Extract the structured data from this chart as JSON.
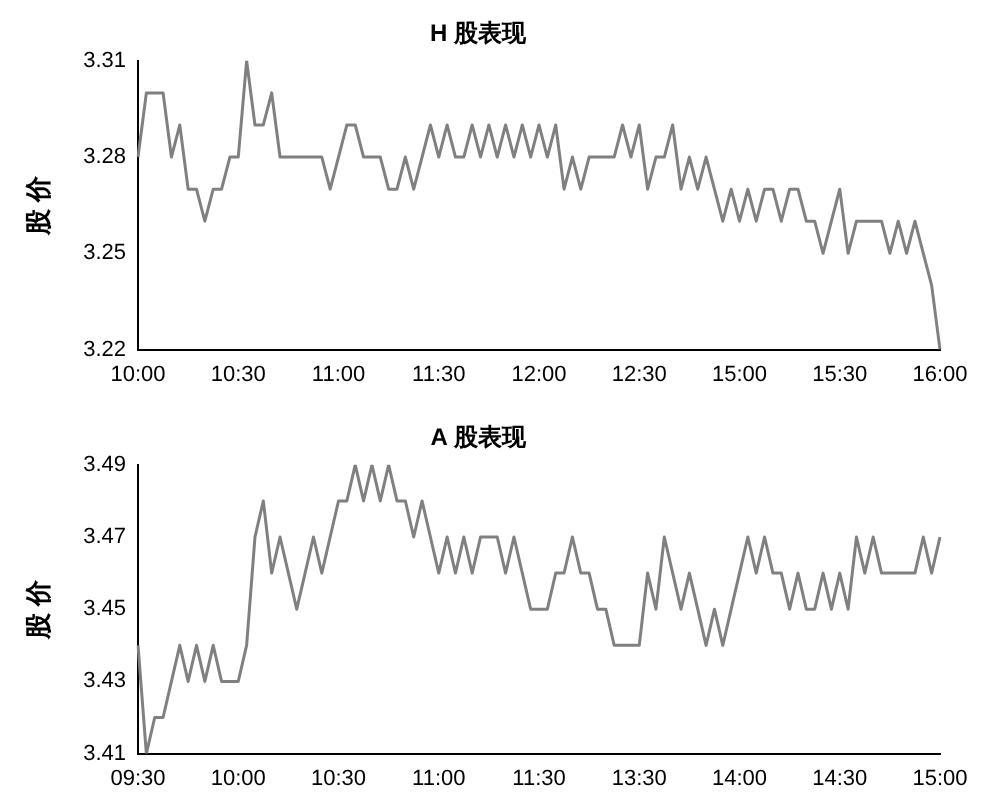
{
  "chart_data": [
    {
      "type": "line",
      "title": "H 股表现",
      "ylabel": "股 价",
      "color": "#808080",
      "grid": false,
      "legend": false,
      "marker": "none",
      "ylim": [
        3.22,
        3.31
      ],
      "yticks": [
        3.22,
        3.25,
        3.28,
        3.31
      ],
      "categories": [
        "10:00",
        null,
        null,
        null,
        null,
        null,
        null,
        null,
        null,
        null,
        null,
        null,
        "10:30",
        null,
        null,
        null,
        null,
        null,
        null,
        null,
        null,
        null,
        null,
        null,
        "11:00",
        null,
        null,
        null,
        null,
        null,
        null,
        null,
        null,
        null,
        null,
        null,
        "11:30",
        null,
        null,
        null,
        null,
        null,
        null,
        null,
        null,
        null,
        null,
        null,
        "12:00",
        null,
        null,
        null,
        null,
        null,
        null,
        null,
        null,
        null,
        null,
        null,
        "12:30",
        null,
        null,
        null,
        null,
        null,
        null,
        null,
        null,
        null,
        null,
        null,
        "15:00",
        null,
        null,
        null,
        null,
        null,
        null,
        null,
        null,
        null,
        null,
        null,
        "15:30",
        null,
        null,
        null,
        null,
        null,
        null,
        null,
        null,
        null,
        null,
        null,
        "16:00"
      ],
      "values": [
        3.28,
        3.3,
        3.3,
        3.3,
        3.28,
        3.29,
        3.27,
        3.27,
        3.26,
        3.27,
        3.27,
        3.28,
        3.28,
        3.31,
        3.29,
        3.29,
        3.3,
        3.28,
        3.28,
        3.28,
        3.28,
        3.28,
        3.28,
        3.27,
        3.28,
        3.29,
        3.29,
        3.28,
        3.28,
        3.28,
        3.27,
        3.27,
        3.28,
        3.27,
        3.28,
        3.29,
        3.28,
        3.29,
        3.28,
        3.28,
        3.29,
        3.28,
        3.29,
        3.28,
        3.29,
        3.28,
        3.29,
        3.28,
        3.29,
        3.28,
        3.29,
        3.27,
        3.28,
        3.27,
        3.28,
        3.28,
        3.28,
        3.28,
        3.29,
        3.28,
        3.29,
        3.27,
        3.28,
        3.28,
        3.29,
        3.27,
        3.28,
        3.27,
        3.28,
        3.27,
        3.26,
        3.27,
        3.26,
        3.27,
        3.26,
        3.27,
        3.27,
        3.26,
        3.27,
        3.27,
        3.26,
        3.26,
        3.25,
        3.26,
        3.27,
        3.25,
        3.26,
        3.26,
        3.26,
        3.26,
        3.25,
        3.26,
        3.25,
        3.26,
        3.25,
        3.24,
        3.22
      ]
    },
    {
      "type": "line",
      "title": "A 股表现",
      "ylabel": "股 价",
      "color": "#808080",
      "grid": false,
      "legend": false,
      "marker": "none",
      "ylim": [
        3.41,
        3.49
      ],
      "yticks": [
        3.41,
        3.43,
        3.45,
        3.47,
        3.49
      ],
      "categories": [
        "09:30",
        null,
        null,
        null,
        null,
        null,
        null,
        null,
        null,
        null,
        null,
        null,
        "10:00",
        null,
        null,
        null,
        null,
        null,
        null,
        null,
        null,
        null,
        null,
        null,
        "10:30",
        null,
        null,
        null,
        null,
        null,
        null,
        null,
        null,
        null,
        null,
        null,
        "11:00",
        null,
        null,
        null,
        null,
        null,
        null,
        null,
        null,
        null,
        null,
        null,
        "11:30",
        null,
        null,
        null,
        null,
        null,
        null,
        null,
        null,
        null,
        null,
        null,
        "13:30",
        null,
        null,
        null,
        null,
        null,
        null,
        null,
        null,
        null,
        null,
        null,
        "14:00",
        null,
        null,
        null,
        null,
        null,
        null,
        null,
        null,
        null,
        null,
        null,
        "14:30",
        null,
        null,
        null,
        null,
        null,
        null,
        null,
        null,
        null,
        null,
        null,
        "15:00"
      ],
      "values": [
        3.44,
        3.41,
        3.42,
        3.42,
        3.43,
        3.44,
        3.43,
        3.44,
        3.43,
        3.44,
        3.43,
        3.43,
        3.43,
        3.44,
        3.47,
        3.48,
        3.46,
        3.47,
        3.46,
        3.45,
        3.46,
        3.47,
        3.46,
        3.47,
        3.48,
        3.48,
        3.49,
        3.48,
        3.49,
        3.48,
        3.49,
        3.48,
        3.48,
        3.47,
        3.48,
        3.47,
        3.46,
        3.47,
        3.46,
        3.47,
        3.46,
        3.47,
        3.47,
        3.47,
        3.46,
        3.47,
        3.46,
        3.45,
        3.45,
        3.45,
        3.46,
        3.46,
        3.47,
        3.46,
        3.46,
        3.45,
        3.45,
        3.44,
        3.44,
        3.44,
        3.44,
        3.46,
        3.45,
        3.47,
        3.46,
        3.45,
        3.46,
        3.45,
        3.44,
        3.45,
        3.44,
        3.45,
        3.46,
        3.47,
        3.46,
        3.47,
        3.46,
        3.46,
        3.45,
        3.46,
        3.45,
        3.45,
        3.46,
        3.45,
        3.46,
        3.45,
        3.47,
        3.46,
        3.47,
        3.46,
        3.46,
        3.46,
        3.46,
        3.46,
        3.47,
        3.46,
        3.47
      ]
    }
  ]
}
